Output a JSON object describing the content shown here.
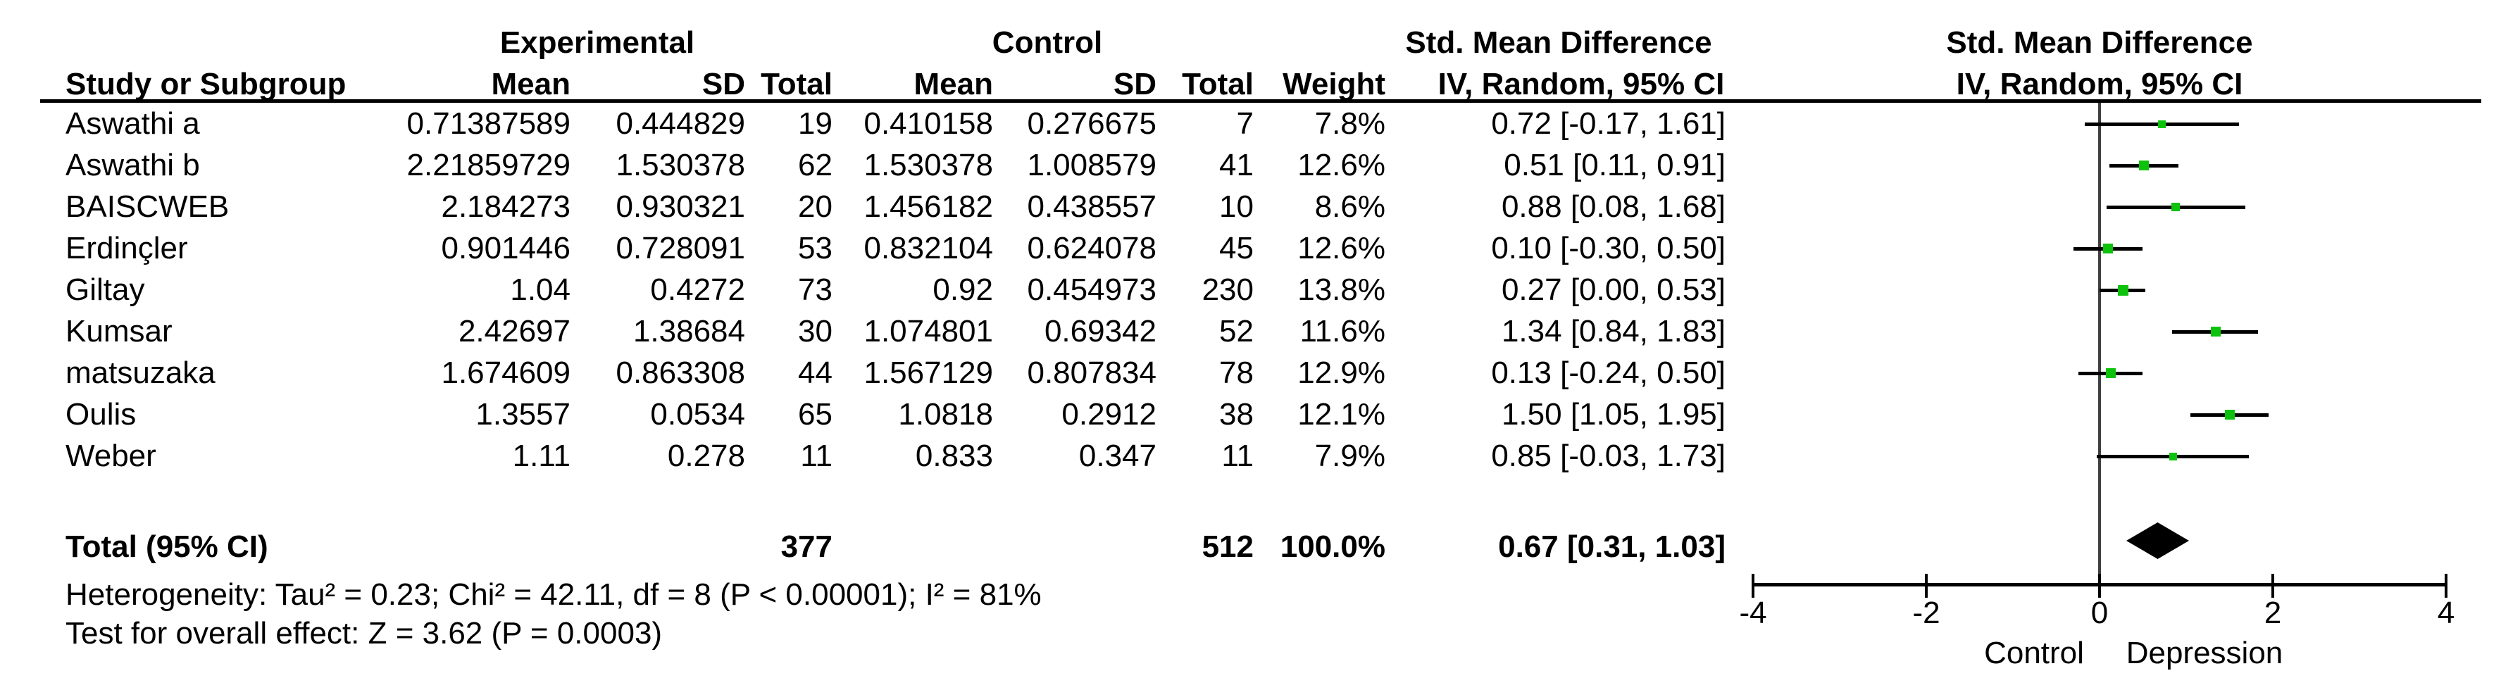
{
  "table": {
    "col_groups": {
      "experimental": "Experimental",
      "control": "Control",
      "smd_text": "Std. Mean Difference",
      "smd_plot": "Std. Mean Difference"
    },
    "col_headers": {
      "study": "Study or Subgroup",
      "exp_mean": "Mean",
      "exp_sd": "SD",
      "exp_total": "Total",
      "ctl_mean": "Mean",
      "ctl_sd": "SD",
      "ctl_total": "Total",
      "weight": "Weight",
      "iv_text": "IV, Random, 95% CI",
      "iv_plot": "IV, Random, 95% CI"
    }
  },
  "studies": [
    {
      "name": "Aswathi a",
      "exp_mean": "0.71387589",
      "exp_sd": "0.444829",
      "exp_total": "19",
      "ctl_mean": "0.410158",
      "ctl_sd": "0.276675",
      "ctl_total": "7",
      "weight": "7.8%",
      "ci_text": "0.72 [-0.17, 1.61]"
    },
    {
      "name": "Aswathi b",
      "exp_mean": "2.21859729",
      "exp_sd": "1.530378",
      "exp_total": "62",
      "ctl_mean": "1.530378",
      "ctl_sd": "1.008579",
      "ctl_total": "41",
      "weight": "12.6%",
      "ci_text": "0.51 [0.11, 0.91]"
    },
    {
      "name": "BAISCWEB",
      "exp_mean": "2.184273",
      "exp_sd": "0.930321",
      "exp_total": "20",
      "ctl_mean": "1.456182",
      "ctl_sd": "0.438557",
      "ctl_total": "10",
      "weight": "8.6%",
      "ci_text": "0.88 [0.08, 1.68]"
    },
    {
      "name": "Erdinçler",
      "exp_mean": "0.901446",
      "exp_sd": "0.728091",
      "exp_total": "53",
      "ctl_mean": "0.832104",
      "ctl_sd": "0.624078",
      "ctl_total": "45",
      "weight": "12.6%",
      "ci_text": "0.10 [-0.30, 0.50]"
    },
    {
      "name": "Giltay",
      "exp_mean": "1.04",
      "exp_sd": "0.4272",
      "exp_total": "73",
      "ctl_mean": "0.92",
      "ctl_sd": "0.454973",
      "ctl_total": "230",
      "weight": "13.8%",
      "ci_text": "0.27 [0.00, 0.53]"
    },
    {
      "name": "Kumsar",
      "exp_mean": "2.42697",
      "exp_sd": "1.38684",
      "exp_total": "30",
      "ctl_mean": "1.074801",
      "ctl_sd": "0.69342",
      "ctl_total": "52",
      "weight": "11.6%",
      "ci_text": "1.34 [0.84, 1.83]"
    },
    {
      "name": "matsuzaka",
      "exp_mean": "1.674609",
      "exp_sd": "0.863308",
      "exp_total": "44",
      "ctl_mean": "1.567129",
      "ctl_sd": "0.807834",
      "ctl_total": "78",
      "weight": "12.9%",
      "ci_text": "0.13 [-0.24, 0.50]"
    },
    {
      "name": "Oulis",
      "exp_mean": "1.3557",
      "exp_sd": "0.0534",
      "exp_total": "65",
      "ctl_mean": "1.0818",
      "ctl_sd": "0.2912",
      "ctl_total": "38",
      "weight": "12.1%",
      "ci_text": "1.50 [1.05, 1.95]"
    },
    {
      "name": "Weber",
      "exp_mean": "1.11",
      "exp_sd": "0.278",
      "exp_total": "11",
      "ctl_mean": "0.833",
      "ctl_sd": "0.347",
      "ctl_total": "11",
      "weight": "7.9%",
      "ci_text": "0.85 [-0.03, 1.73]"
    }
  ],
  "total": {
    "label": "Total (95% CI)",
    "exp_total": "377",
    "ctl_total": "512",
    "weight": "100.0%",
    "ci_text": "0.67 [0.31, 1.03]"
  },
  "footer": {
    "heterogeneity": "Heterogeneity: Tau² = 0.23; Chi² = 42.11, df = 8 (P < 0.00001); I² = 81%",
    "overall": "Test for overall effect: Z = 3.62 (P = 0.0003)"
  },
  "axis": {
    "ticks": [
      "-4",
      "-2",
      "0",
      "2",
      "4"
    ],
    "left_label": "Control",
    "right_label": "Depression"
  },
  "colors": {
    "marker_green": "#0cc20c",
    "diamond": "#000000",
    "ci_line": "#000000",
    "zero_line": "#404040",
    "text": "#000000"
  },
  "chart_data": {
    "type": "scatter",
    "subtype": "forest-plot",
    "effect_measure": "Std. Mean Difference, IV, Random, 95% CI",
    "studies": [
      {
        "name": "Aswathi a",
        "smd": 0.72,
        "ci": [
          -0.17,
          1.61
        ],
        "weight_pct": 7.8
      },
      {
        "name": "Aswathi b",
        "smd": 0.51,
        "ci": [
          0.11,
          0.91
        ],
        "weight_pct": 12.6
      },
      {
        "name": "BAISCWEB",
        "smd": 0.88,
        "ci": [
          0.08,
          1.68
        ],
        "weight_pct": 8.6
      },
      {
        "name": "Erdinçler",
        "smd": 0.1,
        "ci": [
          -0.3,
          0.5
        ],
        "weight_pct": 12.6
      },
      {
        "name": "Giltay",
        "smd": 0.27,
        "ci": [
          0.0,
          0.53
        ],
        "weight_pct": 13.8
      },
      {
        "name": "Kumsar",
        "smd": 1.34,
        "ci": [
          0.84,
          1.83
        ],
        "weight_pct": 11.6
      },
      {
        "name": "matsuzaka",
        "smd": 0.13,
        "ci": [
          -0.24,
          0.5
        ],
        "weight_pct": 12.9
      },
      {
        "name": "Oulis",
        "smd": 1.5,
        "ci": [
          1.05,
          1.95
        ],
        "weight_pct": 12.1
      },
      {
        "name": "Weber",
        "smd": 0.85,
        "ci": [
          -0.03,
          1.73
        ],
        "weight_pct": 7.9
      }
    ],
    "total": {
      "name": "Total (95% CI)",
      "smd": 0.67,
      "ci": [
        0.31,
        1.03
      ],
      "weight_pct": 100.0,
      "n_experimental": 377,
      "n_control": 512
    },
    "xlim": [
      -4,
      4
    ],
    "x_ticks": [
      -4,
      -2,
      0,
      2,
      4
    ],
    "x_left_label": "Control",
    "x_right_label": "Depression",
    "heterogeneity": {
      "tau2": 0.23,
      "chi2": 42.11,
      "df": 8,
      "p": "< 0.00001",
      "i2_pct": 81
    },
    "overall_effect": {
      "z": 3.62,
      "p": 0.0003
    }
  }
}
